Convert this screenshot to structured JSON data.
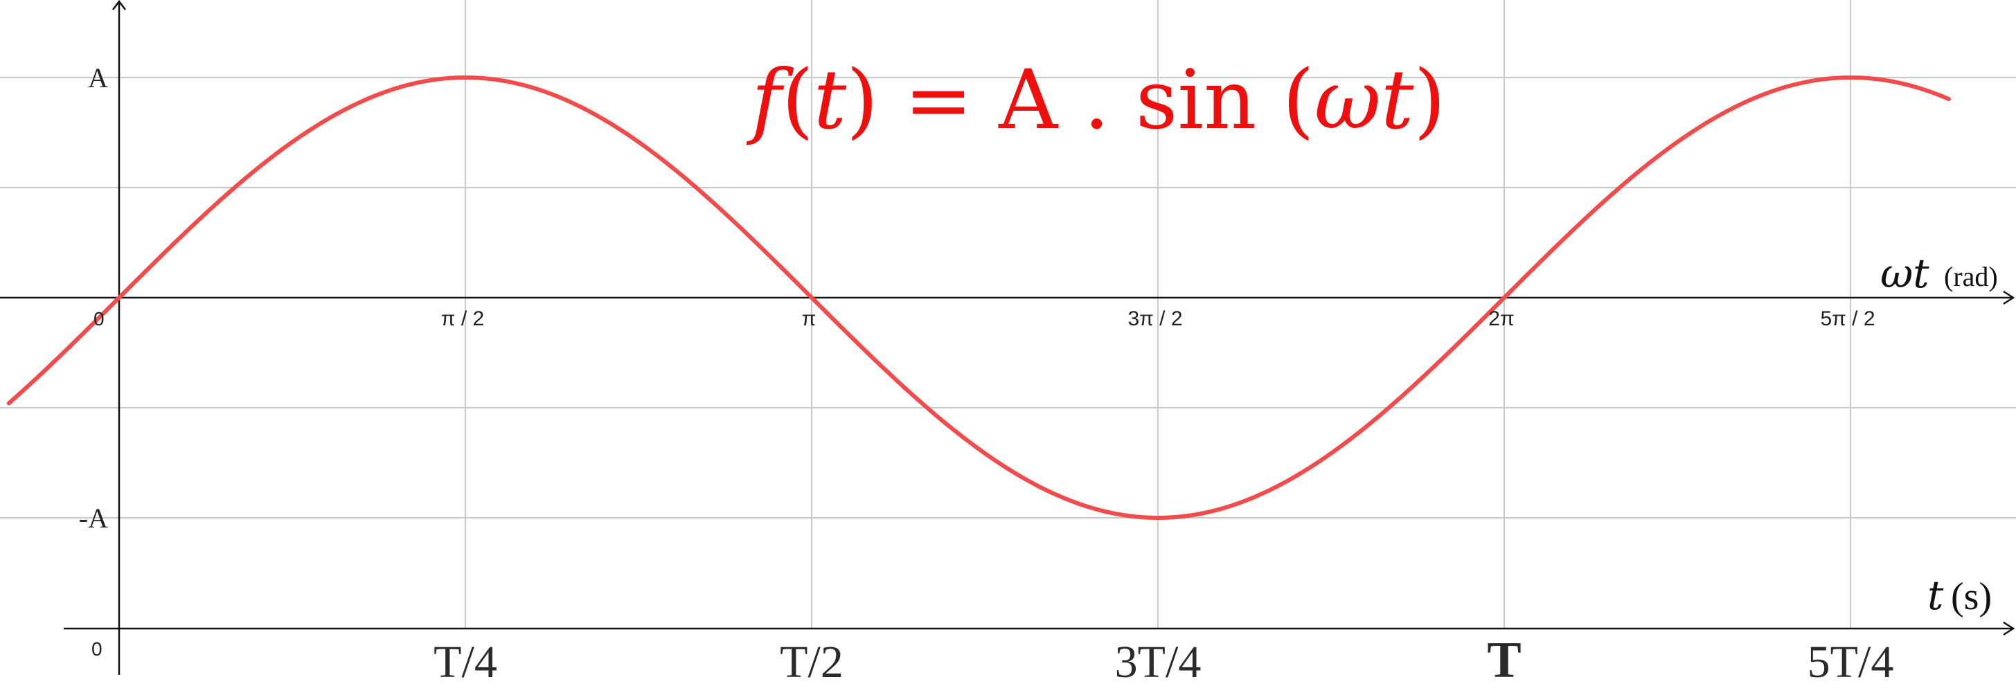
{
  "chart_data": {
    "type": "line",
    "title": "f(t) = A . sin (ωt)",
    "formula_parts": {
      "f": "f",
      "open": "(",
      "t": "t",
      "close_eq": ") = A . sin (",
      "omega_t": "ωt",
      "end": ")"
    },
    "x_axis_rad": {
      "var_label": "ωt",
      "unit_label": "(rad)",
      "zero_label": "0",
      "tick_labels": [
        "π / 2",
        "π",
        "3π / 2",
        "2π",
        "5π / 2"
      ],
      "tick_values_rad": [
        1.5708,
        3.1416,
        4.7124,
        6.2832,
        7.854
      ]
    },
    "x_axis_time": {
      "var_label": "t",
      "unit_label": "(s)",
      "zero_label": "0",
      "tick_labels": [
        "T/4",
        "T/2",
        "3T/4",
        "T",
        "5T/4"
      ]
    },
    "y_axis": {
      "tick_labels": [
        "A",
        "-A"
      ],
      "tick_values": [
        1,
        -1
      ],
      "ylim": [
        -1.5,
        1.3
      ]
    },
    "xlim_rad": [
      -0.5,
      8.3
    ],
    "grid": true,
    "series": [
      {
        "function": "sin",
        "amplitude": 1,
        "color": "#f24b4b"
      }
    ],
    "formula_color": "#ee0f0f"
  }
}
